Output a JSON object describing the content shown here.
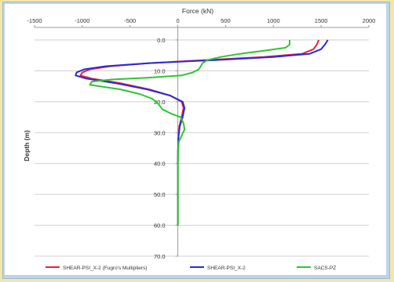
{
  "chart_data": {
    "type": "line",
    "title": "",
    "xlabel": "Force (kN)",
    "ylabel": "Depth (m)",
    "xlim": [
      -1500,
      2000
    ],
    "ylim": [
      0,
      70
    ],
    "x_ticks": [
      "-1500",
      "-1000",
      "-500",
      "0",
      "500",
      "1000",
      "1500",
      "2000"
    ],
    "y_ticks": [
      "0.0",
      "10.0",
      "20.0",
      "30.0",
      "40.0",
      "50.0",
      "60.0",
      "70.0"
    ],
    "x_axis_position": "top",
    "y_axis_inverted": true,
    "grid": "horizontal",
    "legend": "bottom",
    "series": [
      {
        "name": "SHEAR-PSI_X-2 (Fugro's Multipliers)",
        "color": "#e8223a",
        "points": [
          [
            1475,
            0
          ],
          [
            1455,
            1.5
          ],
          [
            1420,
            3
          ],
          [
            1300,
            4.5
          ],
          [
            900,
            5.5
          ],
          [
            300,
            6.5
          ],
          [
            -300,
            7.5
          ],
          [
            -700,
            8.5
          ],
          [
            -920,
            9.5
          ],
          [
            -1000,
            10.5
          ],
          [
            -1020,
            11.5
          ],
          [
            -900,
            12.5
          ],
          [
            -600,
            14
          ],
          [
            -300,
            16
          ],
          [
            -80,
            18
          ],
          [
            40,
            20
          ],
          [
            60,
            22
          ],
          [
            40,
            25
          ],
          [
            15,
            28
          ],
          [
            5,
            32
          ],
          [
            2,
            36
          ],
          [
            0,
            40
          ],
          [
            0,
            50
          ],
          [
            0,
            60
          ]
        ]
      },
      {
        "name": "SHEAR-PSI_X-2",
        "color": "#2a2ad8",
        "points": [
          [
            1570,
            0
          ],
          [
            1540,
            1.5
          ],
          [
            1500,
            3
          ],
          [
            1380,
            4.5
          ],
          [
            1000,
            5.5
          ],
          [
            400,
            6.5
          ],
          [
            -300,
            7.5
          ],
          [
            -750,
            8.5
          ],
          [
            -980,
            9.5
          ],
          [
            -1060,
            10.5
          ],
          [
            -1070,
            11.5
          ],
          [
            -960,
            12.5
          ],
          [
            -650,
            14
          ],
          [
            -320,
            16
          ],
          [
            -80,
            18
          ],
          [
            50,
            20
          ],
          [
            70,
            22
          ],
          [
            50,
            25
          ],
          [
            20,
            28
          ],
          [
            5,
            32
          ],
          [
            2,
            36
          ],
          [
            0,
            40
          ],
          [
            0,
            50
          ],
          [
            0,
            60
          ]
        ]
      },
      {
        "name": "SACS-PZ",
        "color": "#2fc52f",
        "points": [
          [
            1170,
            0
          ],
          [
            1170,
            1.5
          ],
          [
            1130,
            2.5
          ],
          [
            900,
            3.5
          ],
          [
            650,
            4.5
          ],
          [
            450,
            5.5
          ],
          [
            310,
            6.5
          ],
          [
            260,
            7.5
          ],
          [
            240,
            8.5
          ],
          [
            220,
            9.5
          ],
          [
            160,
            10.5
          ],
          [
            40,
            11.5
          ],
          [
            -300,
            12.2
          ],
          [
            -700,
            12.8
          ],
          [
            -900,
            13.5
          ],
          [
            -920,
            14.5
          ],
          [
            -600,
            16
          ],
          [
            -400,
            17.5
          ],
          [
            -270,
            19
          ],
          [
            -210,
            20.5
          ],
          [
            -160,
            22.5
          ],
          [
            -60,
            24
          ],
          [
            30,
            25
          ],
          [
            60,
            27
          ],
          [
            70,
            29
          ],
          [
            40,
            31
          ],
          [
            10,
            33
          ],
          [
            5,
            35
          ],
          [
            3,
            38
          ],
          [
            0,
            40
          ],
          [
            0,
            50
          ],
          [
            0,
            60
          ]
        ]
      }
    ]
  }
}
